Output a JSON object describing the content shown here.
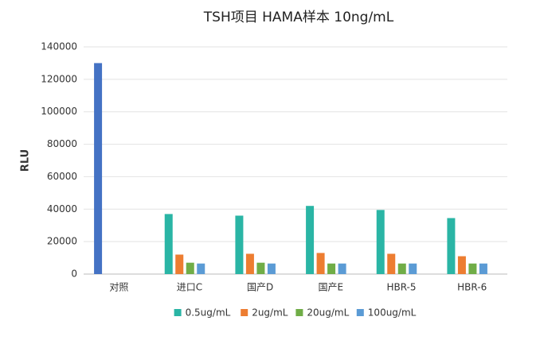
{
  "chart_data": {
    "type": "bar",
    "title": "TSH项目 HAMA样本 10ng/mL",
    "y_label": "RLU",
    "categories": [
      "对照",
      "进口C",
      "国产D",
      "国产E",
      "HBR-5",
      "HBR-6"
    ],
    "series": [
      {
        "name": "0.5ug/mL",
        "color": "#2ab5a5",
        "point_colors": {
          "0": "#4472c4"
        },
        "values": [
          130000,
          37000,
          36000,
          42000,
          39500,
          34500
        ]
      },
      {
        "name": "2ug/mL",
        "color": "#ed7d31",
        "values": [
          null,
          12000,
          12500,
          13000,
          12500,
          11000
        ]
      },
      {
        "name": "20ug/mL",
        "color": "#70ad47",
        "values": [
          null,
          7000,
          7000,
          6500,
          6500,
          6500
        ]
      },
      {
        "name": "100ug/mL",
        "color": "#5b9bd5",
        "values": [
          null,
          6500,
          6500,
          6500,
          6500,
          6500
        ]
      }
    ],
    "ylim": [
      0,
      140000
    ],
    "yticks": [
      0,
      20000,
      40000,
      60000,
      80000,
      100000,
      120000,
      140000
    ],
    "grid": true
  }
}
